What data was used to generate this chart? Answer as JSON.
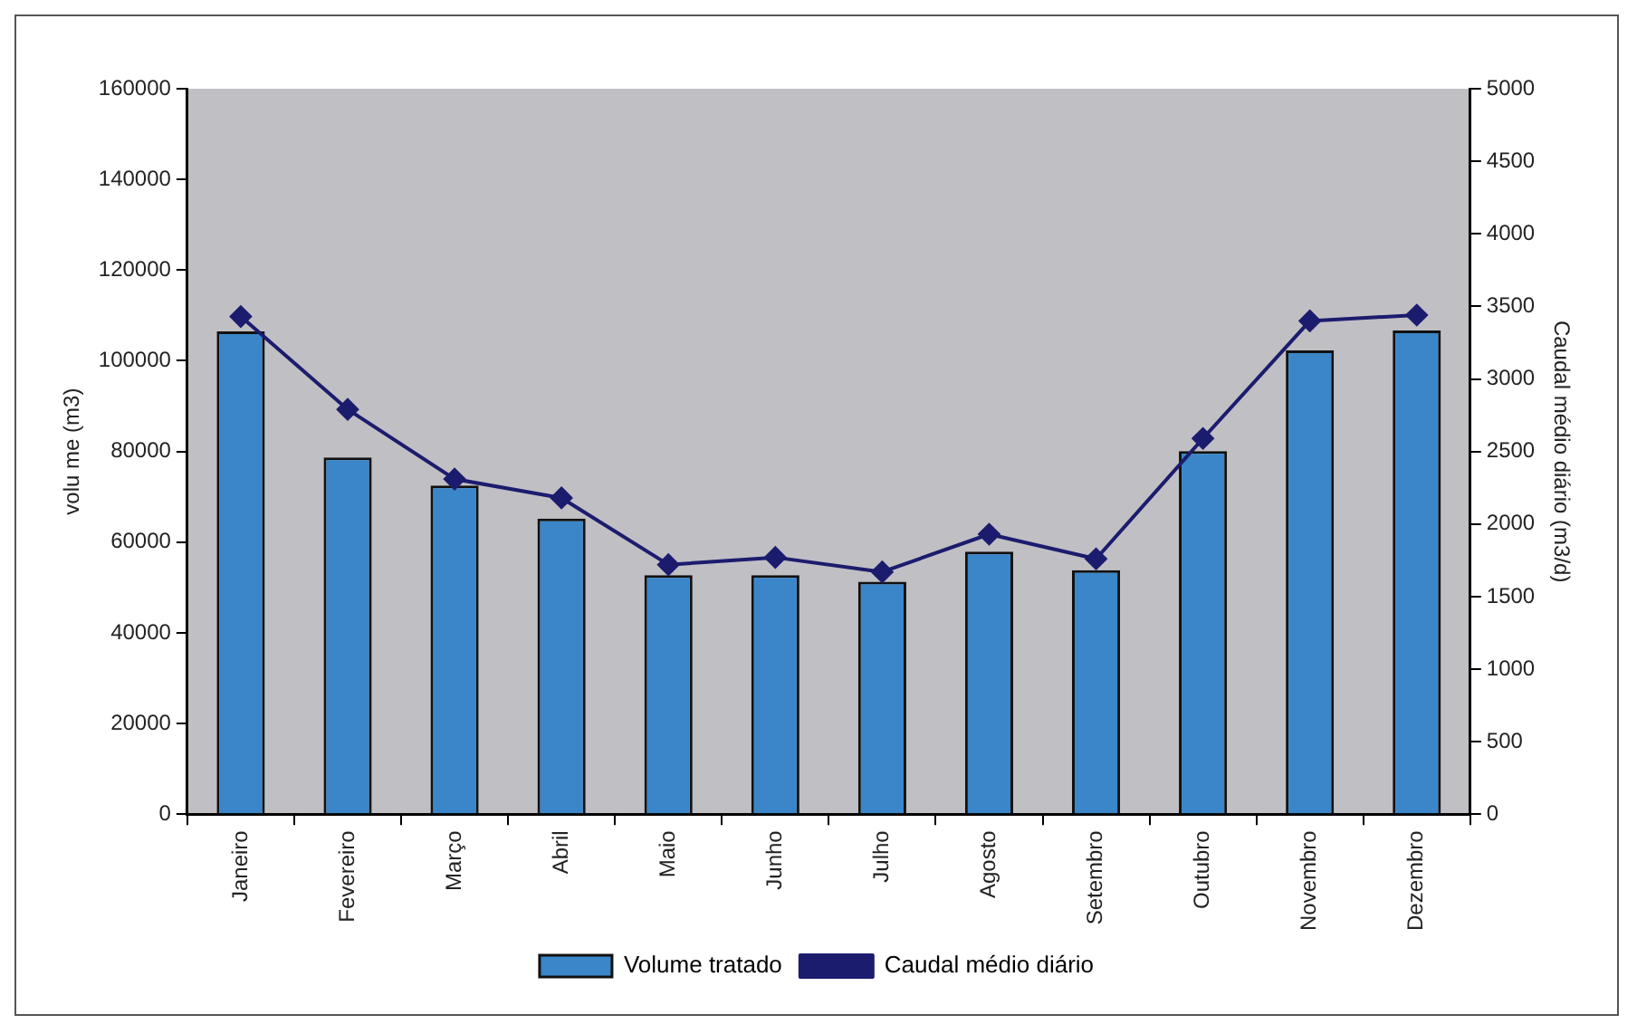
{
  "chart_data": {
    "type": "bar",
    "categories": [
      "Janeiro",
      "Fevereiro",
      "Março",
      "Abril",
      "Maio",
      "Junho",
      "Julho",
      "Agosto",
      "Setembro",
      "Outubro",
      "Novembro",
      "Dezembro"
    ],
    "ylabel": "volu me (m3)",
    "y2label": "Caudal médio diário (m3/d)",
    "series": [
      {
        "name": "Volume tratado",
        "color": "#3a86c8",
        "values": [
          106500,
          78700,
          72500,
          65200,
          52700,
          52700,
          51300,
          57900,
          53800,
          80100,
          102300,
          106700
        ]
      },
      {
        "name": "Caudal médio diário",
        "type": "line",
        "axis": "y2",
        "color": "#1c1c6e",
        "marker": "diamond",
        "values": [
          3430,
          2790,
          2310,
          2180,
          1720,
          1770,
          1670,
          1930,
          1760,
          2590,
          3400,
          3440
        ]
      }
    ],
    "ylim": [
      0,
      160000
    ],
    "yticks": [
      0,
      20000,
      40000,
      60000,
      80000,
      100000,
      120000,
      140000,
      160000
    ],
    "y2lim": [
      0,
      5000
    ],
    "y2ticks": [
      0,
      500,
      1000,
      1500,
      2000,
      2500,
      3000,
      3500,
      4000,
      4500,
      5000
    ],
    "grid": false,
    "legend": "bottom"
  }
}
